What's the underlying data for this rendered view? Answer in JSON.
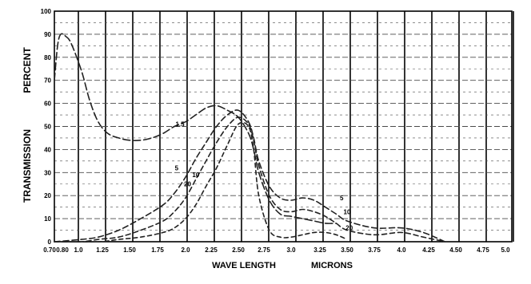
{
  "chart_data": {
    "type": "line",
    "title": "",
    "xlabel_left": "WAVE LENGTH",
    "xlabel_right": "MICRONS",
    "ylabel_top": "PERCENT",
    "ylabel_bottom": "TRANSMISSION",
    "xlim": [
      0.7,
      5.0
    ],
    "ylim": [
      0,
      100
    ],
    "grid": true,
    "x_ticks": [
      {
        "value": 0.7,
        "label": "0.70"
      },
      {
        "value": 0.8,
        "label": "0.80"
      },
      {
        "value": 1.0,
        "label": "1.0"
      },
      {
        "value": 1.25,
        "label": "1.25"
      },
      {
        "value": 1.5,
        "label": "1.50"
      },
      {
        "value": 1.75,
        "label": "1.75"
      },
      {
        "value": 2.0,
        "label": "2.0"
      },
      {
        "value": 2.25,
        "label": "2.25"
      },
      {
        "value": 2.5,
        "label": "2.50"
      },
      {
        "value": 2.75,
        "label": "2.75"
      },
      {
        "value": 3.0,
        "label": "3.0"
      },
      {
        "value": 3.25,
        "label": "3.25"
      },
      {
        "value": 3.5,
        "label": "3.50"
      },
      {
        "value": 3.75,
        "label": "3.75"
      },
      {
        "value": 4.0,
        "label": "4.0"
      },
      {
        "value": 4.25,
        "label": "4.25"
      },
      {
        "value": 4.5,
        "label": "4.50"
      },
      {
        "value": 4.75,
        "label": "4.75"
      },
      {
        "value": 5.0,
        "label": "5.0"
      }
    ],
    "y_ticks": [
      {
        "value": 0,
        "label": "0"
      },
      {
        "value": 10,
        "label": "10"
      },
      {
        "value": 20,
        "label": "20"
      },
      {
        "value": 30,
        "label": "30"
      },
      {
        "value": 40,
        "label": "40"
      },
      {
        "value": 50,
        "label": "50"
      },
      {
        "value": 60,
        "label": "60"
      },
      {
        "value": 70,
        "label": "70"
      },
      {
        "value": 80,
        "label": "80"
      },
      {
        "value": 90,
        "label": "90"
      },
      {
        "value": 100,
        "label": "100"
      }
    ],
    "series": [
      {
        "name": "1.5",
        "x": [
          0.7,
          0.75,
          0.8,
          0.85,
          0.9,
          1.0,
          1.1,
          1.2,
          1.3,
          1.4,
          1.5,
          1.6,
          1.7,
          1.8,
          1.9,
          2.0,
          2.1,
          2.2,
          2.3,
          2.4,
          2.5,
          2.6,
          2.65,
          2.7,
          2.8,
          2.9,
          3.0,
          3.1,
          3.2,
          3.3,
          3.4
        ],
        "y": [
          70,
          85,
          90,
          89,
          86,
          74,
          61,
          52,
          47,
          45,
          44,
          44,
          45,
          47,
          50,
          52,
          55,
          58,
          59,
          57,
          54,
          47,
          40,
          30,
          18,
          12,
          11,
          10,
          9,
          8,
          8
        ]
      },
      {
        "name": "5",
        "x": [
          0.7,
          1.0,
          1.2,
          1.4,
          1.6,
          1.8,
          1.9,
          2.0,
          2.1,
          2.2,
          2.3,
          2.4,
          2.5,
          2.6,
          2.65,
          2.7,
          2.8,
          2.9,
          3.0,
          3.1,
          3.2,
          3.3,
          3.4,
          3.5,
          3.75,
          4.0,
          4.2,
          4.4
        ],
        "y": [
          0,
          1,
          2,
          5,
          10,
          16,
          21,
          28,
          36,
          43,
          50,
          55,
          57,
          52,
          45,
          35,
          24,
          19,
          18,
          19,
          18,
          15,
          12,
          9,
          6,
          6,
          4,
          0
        ]
      },
      {
        "name": "10",
        "x": [
          0.7,
          1.0,
          1.2,
          1.4,
          1.6,
          1.8,
          1.9,
          2.0,
          2.1,
          2.2,
          2.3,
          2.4,
          2.5,
          2.6,
          2.65,
          2.7,
          2.8,
          2.9,
          3.0,
          3.1,
          3.2,
          3.3,
          3.4,
          3.5,
          3.75,
          4.0,
          4.2,
          4.4
        ],
        "y": [
          0,
          0,
          1,
          2,
          5,
          9,
          13,
          19,
          27,
          35,
          43,
          50,
          54,
          51,
          44,
          33,
          20,
          14,
          13,
          14,
          13,
          11,
          8,
          5,
          3,
          4,
          2,
          0
        ]
      },
      {
        "name": "20",
        "x": [
          0.7,
          1.2,
          1.4,
          1.6,
          1.8,
          1.9,
          2.0,
          2.1,
          2.2,
          2.3,
          2.4,
          2.5,
          2.6,
          2.65,
          2.7,
          2.8,
          2.9,
          3.0,
          3.1,
          3.2,
          3.3,
          3.4,
          3.5
        ],
        "y": [
          0,
          0,
          1,
          2,
          4,
          6,
          10,
          16,
          24,
          32,
          42,
          51,
          50,
          40,
          20,
          5,
          2,
          2,
          3,
          4,
          4,
          3,
          1
        ]
      }
    ],
    "annotations": [
      {
        "text": "1.5",
        "x": 1.95,
        "y": 50
      },
      {
        "text": "5",
        "x": 1.92,
        "y": 31
      },
      {
        "text": "10",
        "x": 2.1,
        "y": 28
      },
      {
        "text": "20",
        "x": 2.02,
        "y": 24
      },
      {
        "text": "5",
        "x": 3.45,
        "y": 18
      },
      {
        "text": "10",
        "x": 3.5,
        "y": 12
      },
      {
        "text": "20",
        "x": 3.52,
        "y": 5
      }
    ],
    "colors": {
      "background": "#ffffff",
      "grid_major": "#000000",
      "grid_minor": "#4a4a4a",
      "series": "#222222"
    }
  }
}
